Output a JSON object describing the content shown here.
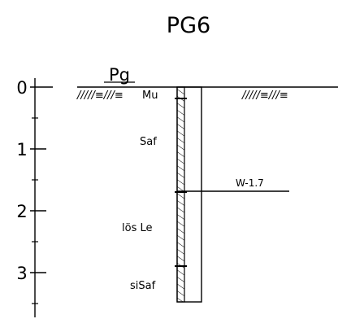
{
  "title": "PG6",
  "probe_label": "Pg",
  "depth_axis": {
    "labels": [
      "0",
      "1",
      "2",
      "3"
    ]
  },
  "layers": [
    {
      "name": "Mu"
    },
    {
      "name": "Saf"
    },
    {
      "name": "lös Le"
    },
    {
      "name": "siSaf"
    }
  ],
  "water_level": {
    "label": "W-1.7"
  },
  "surface_symbol": "/////≡///≡"
}
